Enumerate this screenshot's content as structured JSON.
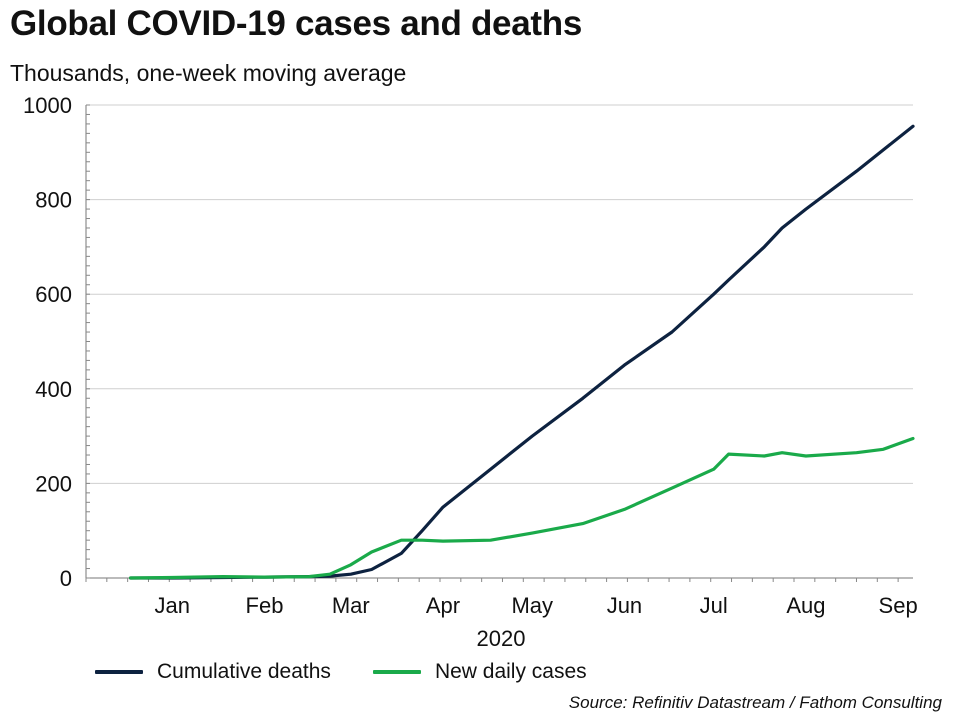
{
  "chart_data": {
    "type": "line",
    "title": "Global COVID-19 cases and deaths",
    "subtitle": "Thousands, one-week moving average",
    "xlabel": "2020",
    "ylabel": "",
    "ylim": [
      0,
      1000
    ],
    "yticks": [
      0,
      200,
      400,
      600,
      800,
      1000
    ],
    "x_ticks": [
      "Jan",
      "Feb",
      "Mar",
      "Apr",
      "May",
      "Jun",
      "Jul",
      "Aug",
      "Sep"
    ],
    "x": [
      "2020-01-01",
      "2020-01-15",
      "2020-02-01",
      "2020-02-15",
      "2020-03-01",
      "2020-03-08",
      "2020-03-15",
      "2020-03-22",
      "2020-04-01",
      "2020-04-08",
      "2020-04-15",
      "2020-05-01",
      "2020-05-15",
      "2020-06-01",
      "2020-06-15",
      "2020-07-01",
      "2020-07-15",
      "2020-07-20",
      "2020-08-01",
      "2020-08-07",
      "2020-08-15",
      "2020-09-01",
      "2020-09-10",
      "2020-09-20"
    ],
    "grid": true,
    "legend_position": "bottom",
    "series": [
      {
        "name": "Cumulative deaths",
        "color": "#0d2240",
        "values": [
          0,
          0,
          1,
          2,
          3,
          4,
          8,
          18,
          52,
          100,
          150,
          230,
          300,
          380,
          450,
          520,
          600,
          630,
          700,
          740,
          780,
          860,
          905,
          955
        ]
      },
      {
        "name": "New daily cases",
        "color": "#1aaa4a",
        "values": [
          0,
          1,
          3,
          2,
          3,
          8,
          28,
          55,
          80,
          80,
          78,
          80,
          95,
          115,
          145,
          190,
          230,
          262,
          258,
          265,
          258,
          265,
          272,
          295
        ]
      }
    ]
  },
  "source": "Source: Refinitiv Datastream / Fathom Consulting"
}
